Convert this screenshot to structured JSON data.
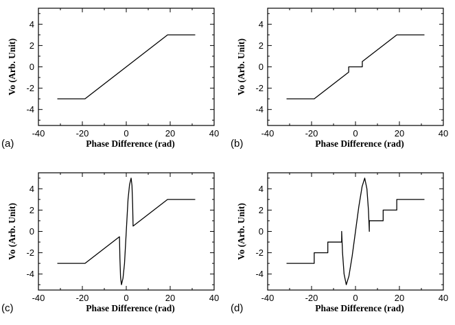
{
  "chart_data": [
    {
      "panel": "(a)",
      "type": "line",
      "xlabel": "Phase Difference (rad)",
      "ylabel": "Vo (Arb. Unit)",
      "xlim": [
        -40,
        40
      ],
      "ylim": [
        -5.5,
        5.5
      ],
      "xticks": [
        "-40",
        "-20",
        "0",
        "20",
        "40"
      ],
      "yticks": [
        "-4",
        "-2",
        "0",
        "2",
        "4"
      ],
      "series": [
        {
          "x": [
            -31.4,
            -18.8,
            18.8,
            31.4
          ],
          "y": [
            -3,
            -3,
            3,
            3
          ]
        }
      ]
    },
    {
      "panel": "(b)",
      "type": "line",
      "xlabel": "Phase Difference (rad)",
      "ylabel": "Vo (Arb. Unit)",
      "xlim": [
        -40,
        40
      ],
      "ylim": [
        -5.5,
        5.5
      ],
      "xticks": [
        "-40",
        "-20",
        "0",
        "20",
        "40"
      ],
      "yticks": [
        "-4",
        "-2",
        "0",
        "2",
        "4"
      ],
      "series": [
        {
          "x": [
            -31.4,
            -18.8,
            -3.1,
            -3.1,
            3.1,
            3.1,
            18.8,
            31.4
          ],
          "y": [
            -3,
            -3,
            -0.5,
            0,
            0,
            0.5,
            3,
            3
          ]
        }
      ]
    },
    {
      "panel": "(c)",
      "type": "line",
      "xlabel": "Phase Difference (rad)",
      "ylabel": "Vo (Arb. Unit)",
      "xlim": [
        -40,
        40
      ],
      "ylim": [
        -5.5,
        5.5
      ],
      "xticks": [
        "-40",
        "-20",
        "0",
        "20",
        "40"
      ],
      "yticks": [
        "-4",
        "-2",
        "0",
        "2",
        "4"
      ],
      "series": [
        {
          "x": [
            -31.4,
            -18.8,
            -3.1,
            -2.9,
            -2.6,
            -2.2,
            -1.5,
            -0.8,
            0,
            0.8,
            1.5,
            2.2,
            2.6,
            2.9,
            3.1,
            18.8,
            31.4
          ],
          "y": [
            -3,
            -3,
            -0.5,
            -2.5,
            -4.3,
            -5.0,
            -4.4,
            -3.0,
            0,
            3.0,
            4.4,
            5.0,
            4.3,
            2.5,
            0.5,
            3,
            3
          ]
        }
      ]
    },
    {
      "panel": "(d)",
      "type": "line",
      "xlabel": "Phase Difference (rad)",
      "ylabel": "Vo (Arb. Unit)",
      "xlim": [
        -40,
        40
      ],
      "ylim": [
        -5.5,
        5.5
      ],
      "xticks": [
        "-40",
        "-20",
        "0",
        "20",
        "40"
      ],
      "yticks": [
        "-4",
        "-2",
        "0",
        "2",
        "4"
      ],
      "series": [
        {
          "x": [
            -31.4,
            -18.8,
            -18.8,
            -12.6,
            -12.6,
            -6.3,
            -6.3,
            -5.9,
            -5.2,
            -4.2,
            -3.0,
            -1.5,
            0,
            1.5,
            3.0,
            4.2,
            5.2,
            5.9,
            6.3,
            6.3,
            12.6,
            12.6,
            18.8,
            18.8,
            31.4
          ],
          "y": [
            -3,
            -3,
            -2,
            -2,
            -1,
            -1,
            0,
            -2.0,
            -4.0,
            -5.0,
            -4.2,
            -2.3,
            0,
            2.3,
            4.2,
            5.0,
            4.0,
            2.0,
            0,
            1,
            1,
            2,
            2,
            3,
            3
          ]
        }
      ]
    }
  ]
}
